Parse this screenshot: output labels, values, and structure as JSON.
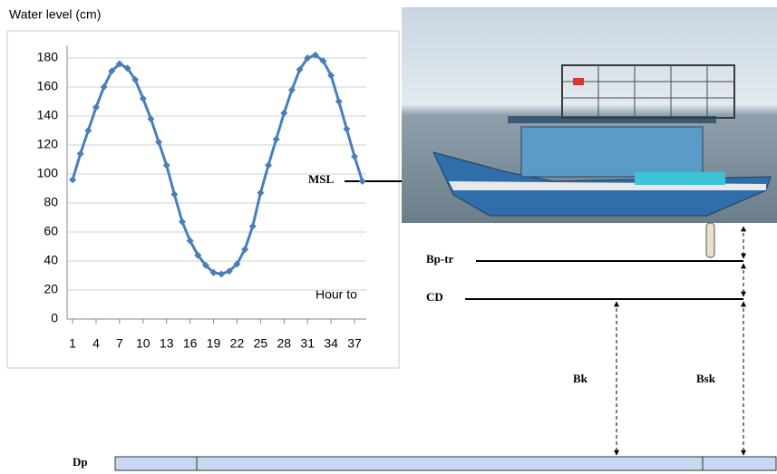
{
  "chart_data": {
    "type": "line",
    "title": "Water level (cm)",
    "x_label": "Hour to",
    "x": [
      1,
      2,
      3,
      4,
      5,
      6,
      7,
      8,
      9,
      10,
      11,
      12,
      13,
      14,
      15,
      16,
      17,
      18,
      19,
      20,
      21,
      22,
      23,
      24,
      25,
      26,
      27,
      28,
      29,
      30,
      31,
      32,
      33,
      34,
      35,
      36,
      37,
      38
    ],
    "series": [
      {
        "color": "#4a7ebb",
        "values": [
          96,
          114,
          130,
          146,
          160,
          171,
          176,
          173,
          165,
          152,
          138,
          122,
          106,
          86,
          67,
          54,
          44,
          37,
          32,
          31,
          33,
          38,
          48,
          64,
          87,
          106,
          124,
          142,
          158,
          172,
          180,
          182,
          178,
          168,
          150,
          131,
          112,
          95
        ]
      }
    ],
    "xlim": [
      0.3,
      38.5
    ],
    "xticks": [
      1,
      4,
      7,
      10,
      13,
      16,
      19,
      22,
      25,
      28,
      31,
      34,
      37
    ],
    "ylim": [
      0,
      180
    ],
    "yticks": [
      0,
      20,
      40,
      60,
      80,
      100,
      120,
      140,
      160,
      180
    ],
    "grid": true
  },
  "diagram": {
    "msl": "MSL",
    "bp_tr": "Bp-tr",
    "cd": "CD",
    "bk": "Bk",
    "bsk": "Bsk",
    "dp": "Dp"
  }
}
